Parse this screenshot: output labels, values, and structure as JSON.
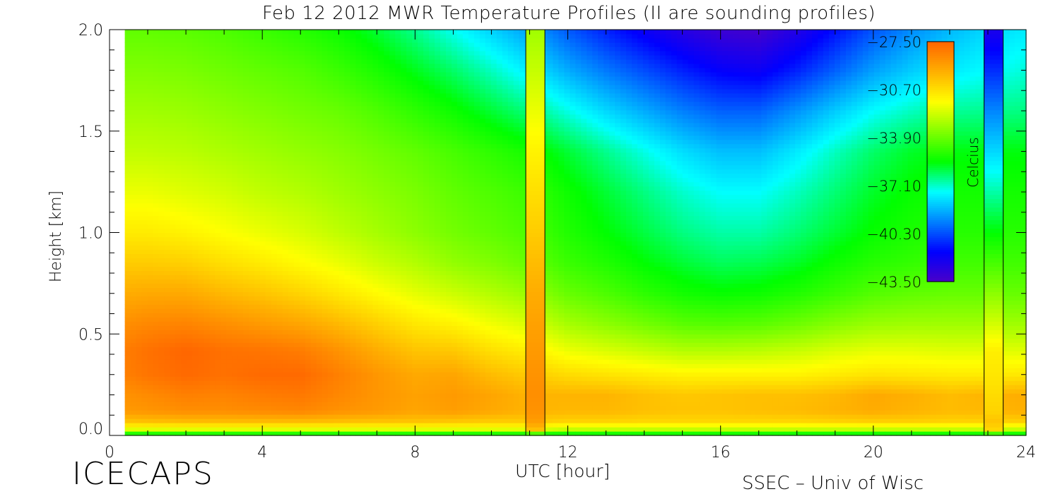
{
  "title": "Feb 12 2012 MWR Temperature Profiles (II are sounding profiles)",
  "branding": {
    "left": "ICECAPS",
    "right": "SSEC – Univ of Wisc"
  },
  "colorbar": {
    "label": "Celcius",
    "tick_labels": [
      "−27.50",
      "−30.70",
      "−33.90",
      "−37.10",
      "−40.30",
      "−43.50"
    ],
    "tick_values": [
      -27.5,
      -30.7,
      -33.9,
      -37.1,
      -40.3,
      -43.5
    ],
    "range": [
      -43.5,
      -27.5
    ],
    "colors": [
      "#4a00c8",
      "#0000ff",
      "#0080ff",
      "#00ffff",
      "#00ff00",
      "#80ff00",
      "#ffff00",
      "#ffb000",
      "#ff6600"
    ]
  },
  "chart_data": {
    "type": "heatmap",
    "title": "Feb 12 2012 MWR Temperature Profiles (II are sounding profiles)",
    "xlabel": "UTC [hour]",
    "ylabel": "Height [km]",
    "xlim": [
      0,
      24
    ],
    "ylim": [
      0,
      2.0
    ],
    "x_ticks": [
      0,
      4,
      8,
      12,
      16,
      20,
      24
    ],
    "x_tick_labels": [
      "0",
      "4",
      "8",
      "12",
      "16",
      "20",
      "24"
    ],
    "y_ticks": [
      0.0,
      0.5,
      1.0,
      1.5,
      2.0
    ],
    "y_tick_labels": [
      "0.0",
      "0.5",
      "1.0",
      "1.5",
      "2.0"
    ],
    "value_unit": "Celcius",
    "data_start_hour": 0.4,
    "heights_km": [
      0.0,
      0.03,
      0.07,
      0.12,
      0.2,
      0.3,
      0.42,
      0.55,
      0.7,
      0.85,
      1.0,
      1.2,
      1.4,
      1.6,
      1.8,
      2.0
    ],
    "hours": [
      0.4,
      1,
      2,
      3,
      4,
      5,
      6,
      7,
      8,
      9,
      10,
      11,
      12,
      13,
      14,
      15,
      16,
      17,
      18,
      19,
      20,
      21,
      22,
      23,
      24
    ],
    "temperature_celsius": [
      [
        -36.5,
        -36.5,
        -36.5,
        -36.5,
        -36.5,
        -36.5,
        -36.5,
        -36.5,
        -36.5,
        -36.5,
        -36.5,
        -36.5,
        -36.5,
        -36.5,
        -36.5,
        -36.5,
        -36.5,
        -36.5,
        -36.5,
        -36.5,
        -36.5,
        -36.5,
        -36.5,
        -36.5,
        -36.5
      ],
      [
        -32.0,
        -32.0,
        -32.0,
        -32.0,
        -32.0,
        -32.0,
        -32.0,
        -32.0,
        -32.0,
        -32.0,
        -32.0,
        -32.0,
        -32.5,
        -32.5,
        -32.5,
        -32.5,
        -32.5,
        -32.5,
        -32.5,
        -32.5,
        -32.5,
        -32.5,
        -32.5,
        -32.5,
        -32.5
      ],
      [
        -30.0,
        -29.9,
        -29.8,
        -29.8,
        -29.8,
        -29.8,
        -29.9,
        -30.0,
        -30.0,
        -30.1,
        -30.2,
        -30.2,
        -30.4,
        -30.4,
        -30.5,
        -30.5,
        -30.5,
        -30.5,
        -30.5,
        -30.4,
        -30.3,
        -30.3,
        -30.4,
        -30.4,
        -30.3
      ],
      [
        -28.9,
        -28.8,
        -28.6,
        -28.6,
        -28.5,
        -28.4,
        -28.7,
        -28.9,
        -29.2,
        -29.0,
        -29.3,
        -29.6,
        -29.7,
        -29.7,
        -29.9,
        -30.0,
        -30.0,
        -29.9,
        -29.8,
        -29.6,
        -29.4,
        -29.6,
        -29.8,
        -29.7,
        -29.5
      ],
      [
        -28.7,
        -28.5,
        -28.2,
        -28.3,
        -28.1,
        -28.0,
        -28.4,
        -28.8,
        -29.1,
        -28.9,
        -29.2,
        -29.6,
        -29.6,
        -29.6,
        -29.9,
        -30.1,
        -30.0,
        -29.9,
        -29.9,
        -29.7,
        -29.3,
        -29.5,
        -29.8,
        -29.6,
        -29.4
      ],
      [
        -28.2,
        -27.9,
        -27.6,
        -27.8,
        -27.6,
        -27.6,
        -28.2,
        -28.8,
        -29.3,
        -29.2,
        -29.8,
        -30.2,
        -30.6,
        -30.8,
        -31.0,
        -31.2,
        -31.2,
        -31.2,
        -31.2,
        -31.0,
        -30.8,
        -30.9,
        -31.0,
        -31.0,
        -30.9
      ],
      [
        -28.1,
        -27.8,
        -27.5,
        -27.8,
        -27.9,
        -28.1,
        -28.7,
        -29.4,
        -30.0,
        -30.1,
        -30.7,
        -31.1,
        -31.8,
        -32.1,
        -32.4,
        -32.7,
        -32.7,
        -32.6,
        -32.4,
        -32.1,
        -31.9,
        -31.9,
        -32.0,
        -32.0,
        -32.0
      ],
      [
        -28.6,
        -28.4,
        -28.3,
        -28.6,
        -28.9,
        -29.2,
        -29.7,
        -30.3,
        -30.9,
        -31.2,
        -31.7,
        -32.1,
        -32.9,
        -33.3,
        -33.7,
        -34.1,
        -34.2,
        -34.1,
        -33.8,
        -33.4,
        -33.1,
        -33.0,
        -33.0,
        -33.0,
        -33.0
      ],
      [
        -29.4,
        -29.3,
        -29.3,
        -29.7,
        -30.0,
        -30.4,
        -30.9,
        -31.4,
        -31.9,
        -32.3,
        -32.7,
        -33.1,
        -33.9,
        -34.3,
        -34.8,
        -35.2,
        -35.4,
        -35.3,
        -35.0,
        -34.6,
        -34.2,
        -34.0,
        -33.9,
        -33.9,
        -33.9
      ],
      [
        -30.2,
        -30.2,
        -30.3,
        -30.7,
        -31.0,
        -31.4,
        -31.8,
        -32.3,
        -32.7,
        -33.2,
        -33.5,
        -33.9,
        -34.6,
        -35.0,
        -35.5,
        -35.9,
        -36.2,
        -36.1,
        -35.8,
        -35.3,
        -34.9,
        -34.7,
        -34.5,
        -34.5,
        -34.5
      ],
      [
        -31.0,
        -31.0,
        -31.2,
        -31.5,
        -31.8,
        -32.1,
        -32.5,
        -32.9,
        -33.3,
        -33.7,
        -34.0,
        -34.3,
        -35.0,
        -35.5,
        -36.0,
        -36.5,
        -36.8,
        -36.8,
        -36.4,
        -35.9,
        -35.4,
        -35.1,
        -34.9,
        -34.9,
        -34.9
      ],
      [
        -31.8,
        -31.8,
        -32.0,
        -32.2,
        -32.5,
        -32.7,
        -33.0,
        -33.3,
        -33.6,
        -34.0,
        -34.3,
        -34.6,
        -35.3,
        -35.9,
        -36.5,
        -37.1,
        -37.5,
        -37.5,
        -37.0,
        -36.4,
        -35.8,
        -35.4,
        -35.2,
        -35.2,
        -35.2
      ],
      [
        -32.5,
        -32.5,
        -32.6,
        -32.8,
        -33.0,
        -33.2,
        -33.4,
        -33.7,
        -34.0,
        -34.4,
        -34.8,
        -35.2,
        -35.9,
        -36.6,
        -37.3,
        -38.0,
        -38.5,
        -38.5,
        -37.8,
        -37.0,
        -36.3,
        -35.8,
        -35.6,
        -35.6,
        -35.6
      ],
      [
        -33.0,
        -33.0,
        -33.1,
        -33.3,
        -33.5,
        -33.7,
        -33.9,
        -34.3,
        -34.8,
        -35.3,
        -35.9,
        -36.5,
        -37.3,
        -38.1,
        -38.8,
        -39.5,
        -40.0,
        -40.0,
        -39.2,
        -38.3,
        -37.5,
        -37.0,
        -36.7,
        -36.6,
        -36.5
      ],
      [
        -33.5,
        -33.5,
        -33.6,
        -33.8,
        -34.0,
        -34.2,
        -34.6,
        -35.1,
        -35.7,
        -36.3,
        -37.0,
        -37.8,
        -38.8,
        -39.6,
        -40.3,
        -41.0,
        -41.6,
        -41.8,
        -41.0,
        -40.0,
        -39.0,
        -38.3,
        -37.8,
        -37.5,
        -37.2
      ],
      [
        -34.0,
        -34.0,
        -34.1,
        -34.3,
        -34.6,
        -34.9,
        -35.3,
        -35.9,
        -36.6,
        -37.4,
        -38.2,
        -39.0,
        -40.1,
        -41.0,
        -41.8,
        -42.5,
        -43.1,
        -43.3,
        -42.4,
        -41.3,
        -40.2,
        -39.3,
        -38.6,
        -38.1,
        -37.8
      ]
    ],
    "sounding_profiles": [
      {
        "hour_start": 10.9,
        "hour_end": 11.4,
        "profile_celsius": [
          -36.5,
          -29.9,
          -29.0,
          -28.7,
          -28.6,
          -28.7,
          -28.9,
          -29.1,
          -29.4,
          -29.8,
          -30.2,
          -30.7,
          -31.2,
          -31.8,
          -32.4,
          -33.0
        ]
      },
      {
        "hour_start": 22.9,
        "hour_end": 23.4,
        "profile_celsius": [
          -36.5,
          -30.5,
          -30.0,
          -30.4,
          -30.6,
          -30.9,
          -31.1,
          -32.2,
          -33.3,
          -34.4,
          -35.5,
          -36.8,
          -38.1,
          -39.4,
          -40.8,
          -42.2
        ]
      }
    ]
  }
}
